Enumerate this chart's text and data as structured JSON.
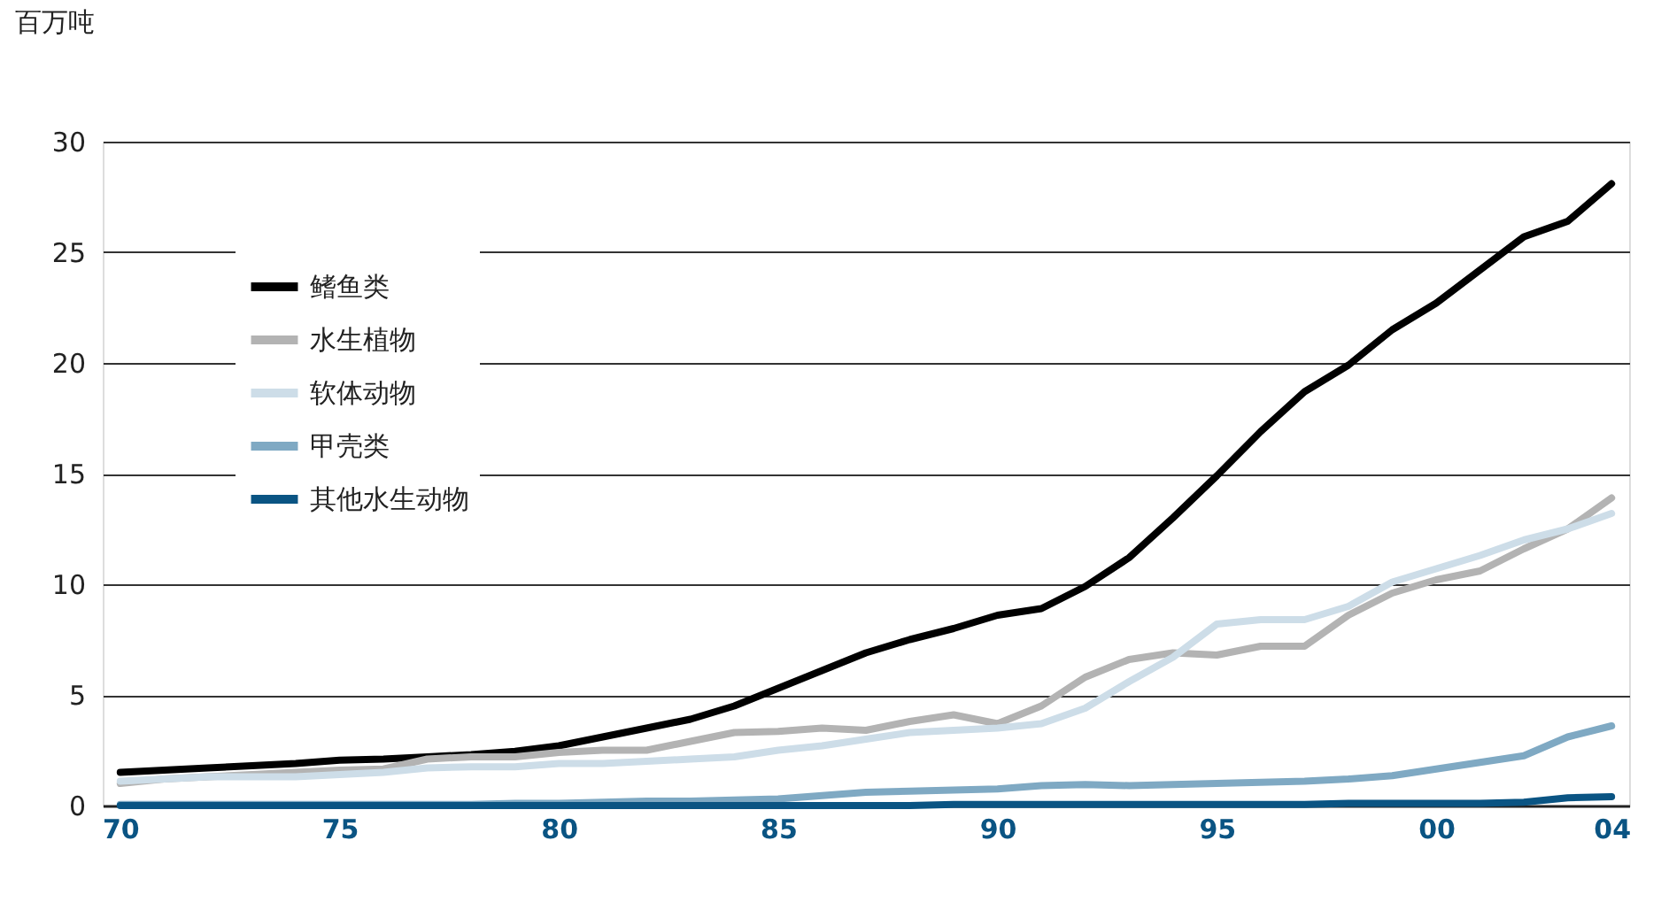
{
  "chart_data": {
    "type": "line",
    "ylabel": "百万吨",
    "x": [
      1970,
      1971,
      1972,
      1973,
      1974,
      1975,
      1976,
      1977,
      1978,
      1979,
      1980,
      1981,
      1982,
      1983,
      1984,
      1985,
      1986,
      1987,
      1988,
      1989,
      1990,
      1991,
      1992,
      1993,
      1994,
      1995,
      1996,
      1997,
      1998,
      1999,
      2000,
      2001,
      2002,
      2003,
      2004
    ],
    "series": [
      {
        "name": "鳍鱼类",
        "color": "#000000",
        "values": [
          1.5,
          1.6,
          1.7,
          1.8,
          1.9,
          2.05,
          2.1,
          2.2,
          2.3,
          2.45,
          2.7,
          3.1,
          3.5,
          3.9,
          4.5,
          5.3,
          6.1,
          6.9,
          7.5,
          8.0,
          8.6,
          8.9,
          9.9,
          11.2,
          13.0,
          14.9,
          16.9,
          18.7,
          19.9,
          21.5,
          22.7,
          24.2,
          25.7,
          26.4,
          28.1
        ]
      },
      {
        "name": "水生植物",
        "color": "#b3b3b3",
        "values": [
          1.0,
          1.2,
          1.3,
          1.4,
          1.5,
          1.6,
          1.65,
          2.1,
          2.2,
          2.2,
          2.4,
          2.5,
          2.5,
          2.9,
          3.3,
          3.35,
          3.5,
          3.4,
          3.8,
          4.1,
          3.7,
          4.5,
          5.8,
          6.6,
          6.9,
          6.8,
          7.2,
          7.2,
          8.6,
          9.6,
          10.2,
          10.6,
          11.6,
          12.5,
          13.9
        ]
      },
      {
        "name": "软体动物",
        "color": "#cddde8",
        "values": [
          1.1,
          1.2,
          1.3,
          1.3,
          1.3,
          1.4,
          1.5,
          1.7,
          1.75,
          1.75,
          1.9,
          1.9,
          2.0,
          2.1,
          2.2,
          2.5,
          2.7,
          3.0,
          3.3,
          3.4,
          3.5,
          3.7,
          4.4,
          5.6,
          6.7,
          8.2,
          8.4,
          8.4,
          9.0,
          10.1,
          10.7,
          11.3,
          12.0,
          12.5,
          13.2
        ]
      },
      {
        "name": "甲壳类",
        "color": "#7fa9c3",
        "values": [
          0.05,
          0.05,
          0.05,
          0.05,
          0.05,
          0.05,
          0.05,
          0.05,
          0.05,
          0.1,
          0.1,
          0.15,
          0.2,
          0.2,
          0.25,
          0.3,
          0.45,
          0.6,
          0.65,
          0.7,
          0.75,
          0.9,
          0.95,
          0.9,
          0.95,
          1.0,
          1.05,
          1.1,
          1.2,
          1.35,
          1.65,
          1.95,
          2.25,
          3.1,
          3.6
        ]
      },
      {
        "name": "其他水生动物",
        "color": "#0a5483",
        "values": [
          0,
          0,
          0,
          0,
          0,
          0,
          0,
          0,
          0,
          0,
          0,
          0,
          0,
          0,
          0,
          0,
          0,
          0,
          0,
          0.05,
          0.05,
          0.05,
          0.05,
          0.05,
          0.05,
          0.05,
          0.05,
          0.05,
          0.1,
          0.1,
          0.1,
          0.1,
          0.15,
          0.35,
          0.4
        ]
      }
    ],
    "xlim": [
      1969.6,
      2004.4
    ],
    "xticks": [
      {
        "value": 1970,
        "label": "70"
      },
      {
        "value": 1975,
        "label": "75"
      },
      {
        "value": 1980,
        "label": "80"
      },
      {
        "value": 1985,
        "label": "85"
      },
      {
        "value": 1990,
        "label": "90"
      },
      {
        "value": 1995,
        "label": "95"
      },
      {
        "value": 2000,
        "label": "00"
      },
      {
        "value": 2004,
        "label": "04"
      }
    ],
    "ylim": [
      0,
      30
    ],
    "yticks": [
      0,
      5,
      10,
      15,
      20,
      25,
      30
    ],
    "grid": "y",
    "legend": "top left",
    "marker": "none",
    "line_style": "solid"
  }
}
